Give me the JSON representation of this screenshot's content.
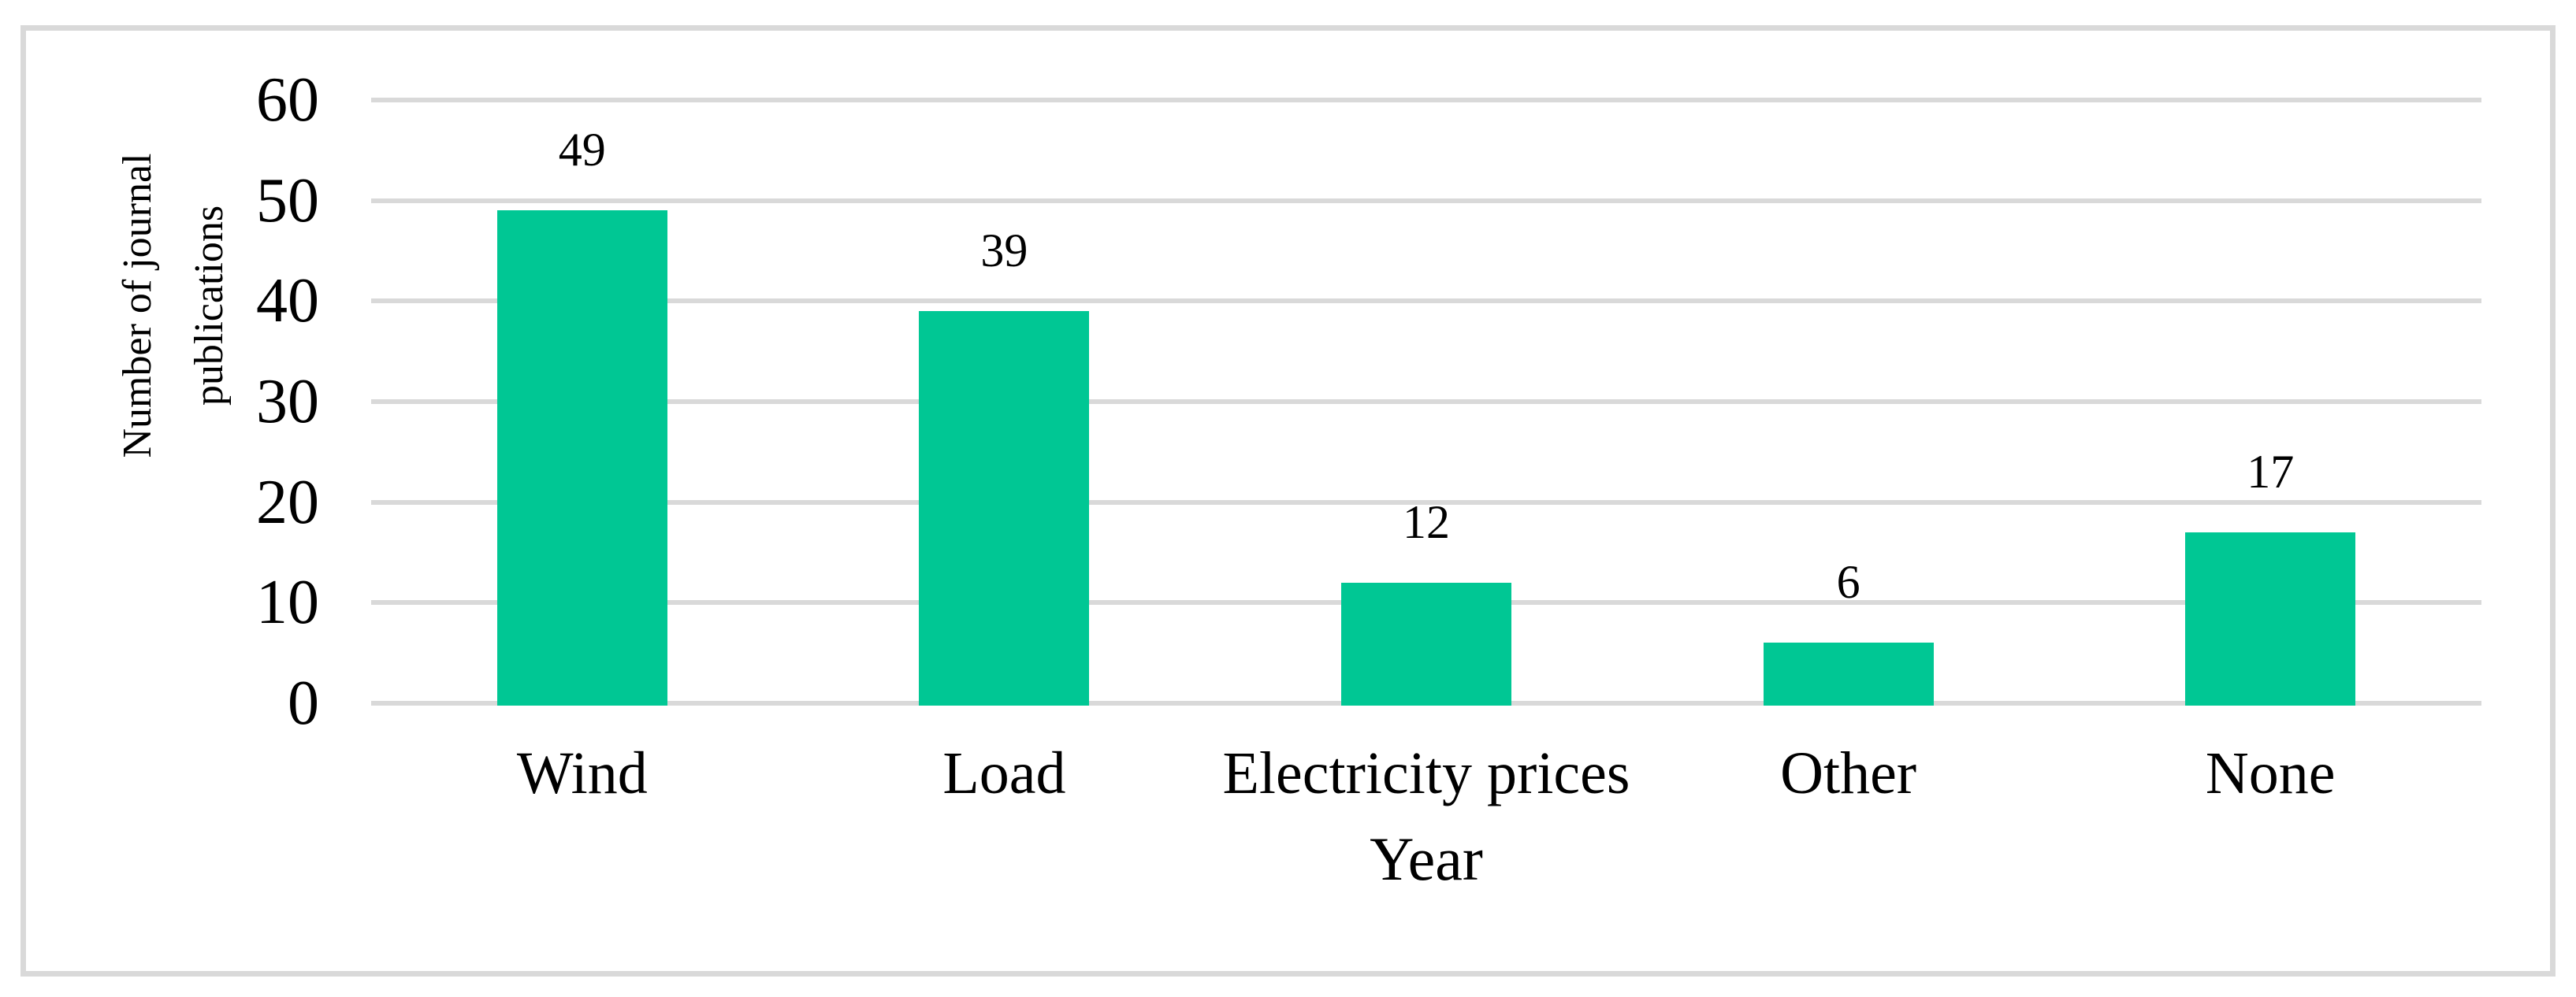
{
  "chart_data": {
    "type": "bar",
    "title": "",
    "categories": [
      "Wind",
      "Load",
      "Electricity prices",
      "Other",
      "None"
    ],
    "values": [
      49,
      39,
      12,
      6,
      17
    ],
    "data_labels": [
      "49",
      "39",
      "12",
      "6",
      "17"
    ],
    "xlabel": "Year",
    "ylabel": "Number of journal publications",
    "ylabel_lines": [
      "Number of journal",
      "publications"
    ],
    "yticks": [
      0,
      10,
      20,
      30,
      40,
      50,
      60
    ],
    "ytick_labels": [
      "0",
      "10",
      "20",
      "30",
      "40",
      "50",
      "60"
    ],
    "ylim": [
      0,
      60
    ],
    "grid": "horizontal",
    "legend": false,
    "colors": {
      "bar": "#00C794",
      "gridline": "#D9D9D9",
      "frame_border": "#D9D9D9",
      "text": "#000000",
      "background": "#FFFFFF"
    }
  }
}
